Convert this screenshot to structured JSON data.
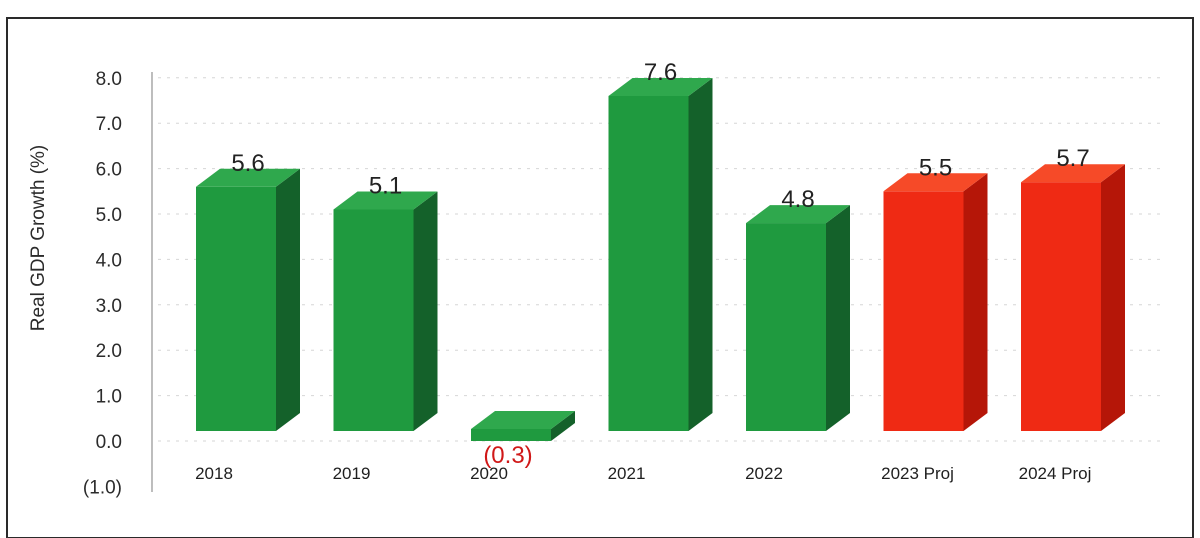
{
  "chart_data": {
    "type": "bar",
    "title": "",
    "xlabel": "",
    "ylabel": "Real GDP Growth (%)",
    "categories": [
      "2018",
      "2019",
      "2020",
      "2021",
      "2022",
      "2023 Proj",
      "2024 Proj"
    ],
    "values": [
      5.6,
      5.1,
      -0.3,
      7.6,
      4.8,
      5.5,
      5.7
    ],
    "data_labels": [
      "5.6",
      "5.1",
      "(0.3)",
      "7.6",
      "4.8",
      "5.5",
      "5.7"
    ],
    "bar_status": [
      "actual",
      "actual",
      "actual",
      "actual",
      "actual",
      "projection",
      "projection"
    ],
    "yticks": [
      "(1.0)",
      "0.0",
      "1.0",
      "2.0",
      "3.0",
      "4.0",
      "5.0",
      "6.0",
      "7.0",
      "8.0"
    ],
    "ylim": [
      -1,
      8
    ],
    "grid": true,
    "legend": "none",
    "colors": {
      "actual_front": "#1f9a3f",
      "actual_side": "#14612a",
      "actual_top": "#2fa84d",
      "projection_front": "#ef2a14",
      "projection_side": "#b51608",
      "projection_top": "#f64a28",
      "negative_label": "#d01818"
    }
  }
}
